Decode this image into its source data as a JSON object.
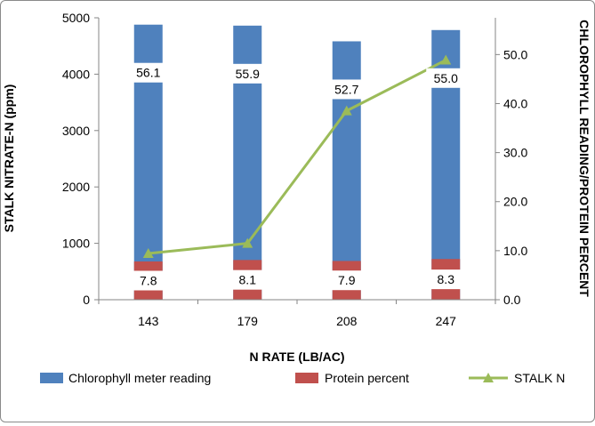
{
  "chart_data": {
    "type": "bar",
    "categories": [
      "143",
      "179",
      "208",
      "247"
    ],
    "xlabel": "N RATE (LB/AC)",
    "ylabel": "STALK NITRATE-N (ppm)",
    "y2label": "CHLOROPHYLL READING/PROTEIN PERCENT",
    "ylim": [
      0,
      5000
    ],
    "y_ticks": [
      "0",
      "1000",
      "2000",
      "3000",
      "4000",
      "5000"
    ],
    "y2lim": [
      0,
      57.5
    ],
    "y2_ticks": [
      "0.0",
      "10.0",
      "20.0",
      "30.0",
      "40.0",
      "50.0"
    ],
    "grid": false,
    "legend_position": "bottom",
    "series": [
      {
        "name": "Chlorophyll meter reading",
        "type": "bar",
        "axis": "secondary",
        "color": "#4f81bd",
        "values": [
          56.1,
          55.9,
          52.7,
          55.0
        ],
        "labels": [
          "56.1",
          "55.9",
          "52.7",
          "55.0"
        ]
      },
      {
        "name": "Protein percent",
        "type": "bar",
        "axis": "secondary",
        "color": "#c0504d",
        "values": [
          7.8,
          8.1,
          7.9,
          8.3
        ],
        "labels": [
          "7.8",
          "8.1",
          "7.9",
          "8.3"
        ]
      },
      {
        "name": "STALK N",
        "type": "line",
        "axis": "primary",
        "color": "#9bbb59",
        "marker": "triangle",
        "values": [
          820,
          1000,
          3350,
          4250
        ]
      }
    ]
  }
}
